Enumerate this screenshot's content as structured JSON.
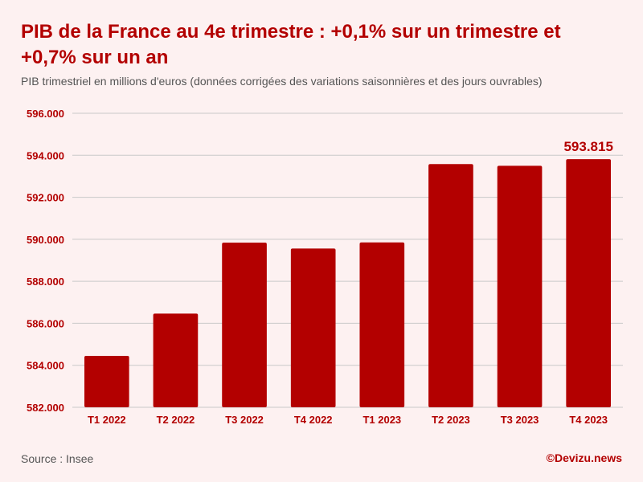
{
  "header": {
    "title": "PIB de la France au 4e trimestre : +0,1% sur un trimestre et +0,7% sur un an",
    "subtitle": "PIB trimestriel en millions d'euros (données corrigées des variations saisonnières et des jours ouvrables)"
  },
  "footer": {
    "source": "Source : Insee",
    "brand": "©Devizu.news"
  },
  "colors": {
    "bar": "#b30000",
    "title": "#b30000",
    "grid": "#c9c9c9",
    "background": "#fdf1f1"
  },
  "chart_data": {
    "type": "bar",
    "title": "PIB de la France au 4e trimestre : +0,1% sur un trimestre et +0,7% sur un an",
    "subtitle": "PIB trimestriel en millions d'euros (données corrigées des variations saisonnières et des jours ouvrables)",
    "categories": [
      "T1 2022",
      "T2 2022",
      "T3 2022",
      "T4 2022",
      "T1 2023",
      "T2 2023",
      "T3 2023",
      "T4 2023"
    ],
    "values": [
      584450,
      586460,
      589840,
      589560,
      589850,
      593580,
      593500,
      593815
    ],
    "ylim": [
      582000,
      596000
    ],
    "yticks": [
      582000,
      584000,
      586000,
      588000,
      590000,
      592000,
      594000,
      596000
    ],
    "ytick_labels": [
      "582.000",
      "584.000",
      "586.000",
      "588.000",
      "590.000",
      "592.000",
      "594.000",
      "596.000"
    ],
    "grid": "horizontal",
    "annotations": [
      {
        "category": "T4 2023",
        "text": "593.815"
      }
    ]
  }
}
